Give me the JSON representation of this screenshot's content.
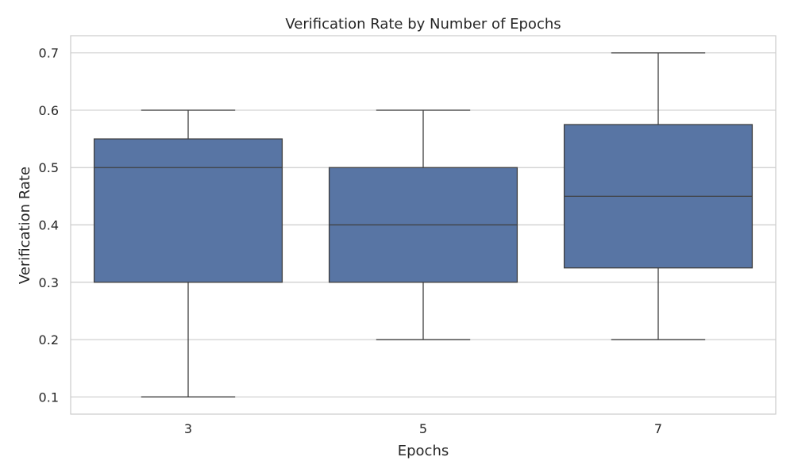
{
  "chart_data": {
    "type": "box",
    "title": "Verification Rate by Number of Epochs",
    "xlabel": "Epochs",
    "ylabel": "Verification Rate",
    "categories": [
      "3",
      "5",
      "7"
    ],
    "boxes": [
      {
        "category": "3",
        "min": 0.1,
        "q1": 0.3,
        "median": 0.5,
        "q3": 0.55,
        "max": 0.6
      },
      {
        "category": "5",
        "min": 0.2,
        "q1": 0.3,
        "median": 0.4,
        "q3": 0.5,
        "max": 0.6
      },
      {
        "category": "7",
        "min": 0.2,
        "q1": 0.325,
        "median": 0.45,
        "q3": 0.575,
        "max": 0.7
      }
    ],
    "ylim": [
      0.07,
      0.73
    ],
    "yticks": [
      0.1,
      0.2,
      0.3,
      0.4,
      0.5,
      0.6,
      0.7
    ],
    "ytick_labels": [
      "0.1",
      "0.2",
      "0.3",
      "0.4",
      "0.5",
      "0.6",
      "0.7"
    ],
    "grid": "horizontal",
    "colors": {
      "box_fill": "#5875a4",
      "line": "#3f3f3f",
      "grid": "#cccccc",
      "frame": "#cccccc"
    }
  }
}
